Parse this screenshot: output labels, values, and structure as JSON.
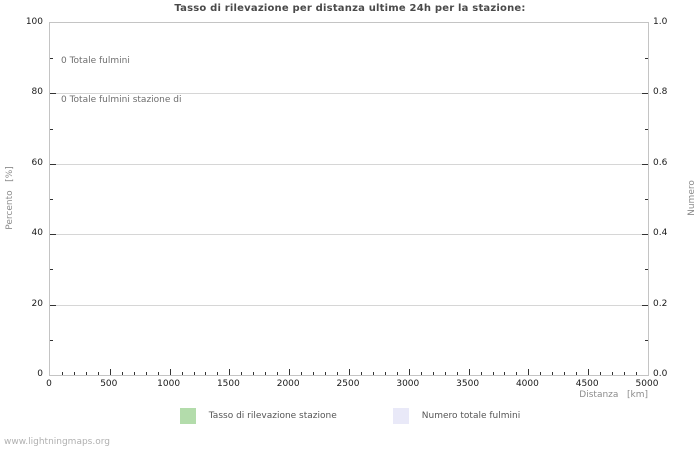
{
  "figure": {
    "title": "Tasso di rilevazione per distanza ultime 24h per la stazione:",
    "watermark": "www.lightningmaps.org"
  },
  "legend": {
    "items": [
      {
        "label": "Tasso di rilevazione stazione",
        "color": "#b3dcab"
      },
      {
        "label": "Numero totale fulmini",
        "color": "#e9e9f8"
      }
    ]
  },
  "chart_data": {
    "type": "line",
    "title": "Tasso di rilevazione per distanza ultime 24h per la stazione:",
    "xlabel": "Distanza   [km]",
    "ylabel_left": "Percento   [%]",
    "ylabel_right": "Numero",
    "x_axis": {
      "min": 0,
      "max": 5000,
      "major_ticks": [
        0,
        500,
        1000,
        1500,
        2000,
        2500,
        3000,
        3500,
        4000,
        4500,
        5000
      ],
      "minor_step": 100
    },
    "y_axis_left": {
      "min": 0,
      "max": 100,
      "major_ticks": [
        0,
        20,
        40,
        60,
        80,
        100
      ],
      "minor_step": 10
    },
    "y_axis_right": {
      "min": 0,
      "max": 1,
      "major_tick_labels": [
        "0.0",
        "0.2",
        "0.4",
        "0.6",
        "0.8",
        "1.0"
      ],
      "minor_step": 0.1
    },
    "grid": {
      "horizontal_major": true,
      "vertical": false
    },
    "legend_position": "bottom-center",
    "series": [
      {
        "name": "Tasso di rilevazione stazione",
        "color": "#b3dcab",
        "axis": "left",
        "x": [],
        "y": []
      },
      {
        "name": "Numero totale fulmini",
        "color": "#e9e9f8",
        "axis": "right",
        "x": [],
        "y": []
      }
    ],
    "annotations": [
      "0 Totale fulmini",
      "0 Totale fulmini stazione di"
    ]
  },
  "colors": {
    "title": "#4a4a4a",
    "axis_labels": "#8c8c8c",
    "tick_labels": "#1a1a1a",
    "annotation_text": "#6e6e6e",
    "legend_text": "#555555",
    "watermark": "#b0b0b0",
    "border": "#c4c4c4",
    "gridline": "#d6d6d6",
    "tick": "#333333",
    "background": "#ffffff"
  }
}
